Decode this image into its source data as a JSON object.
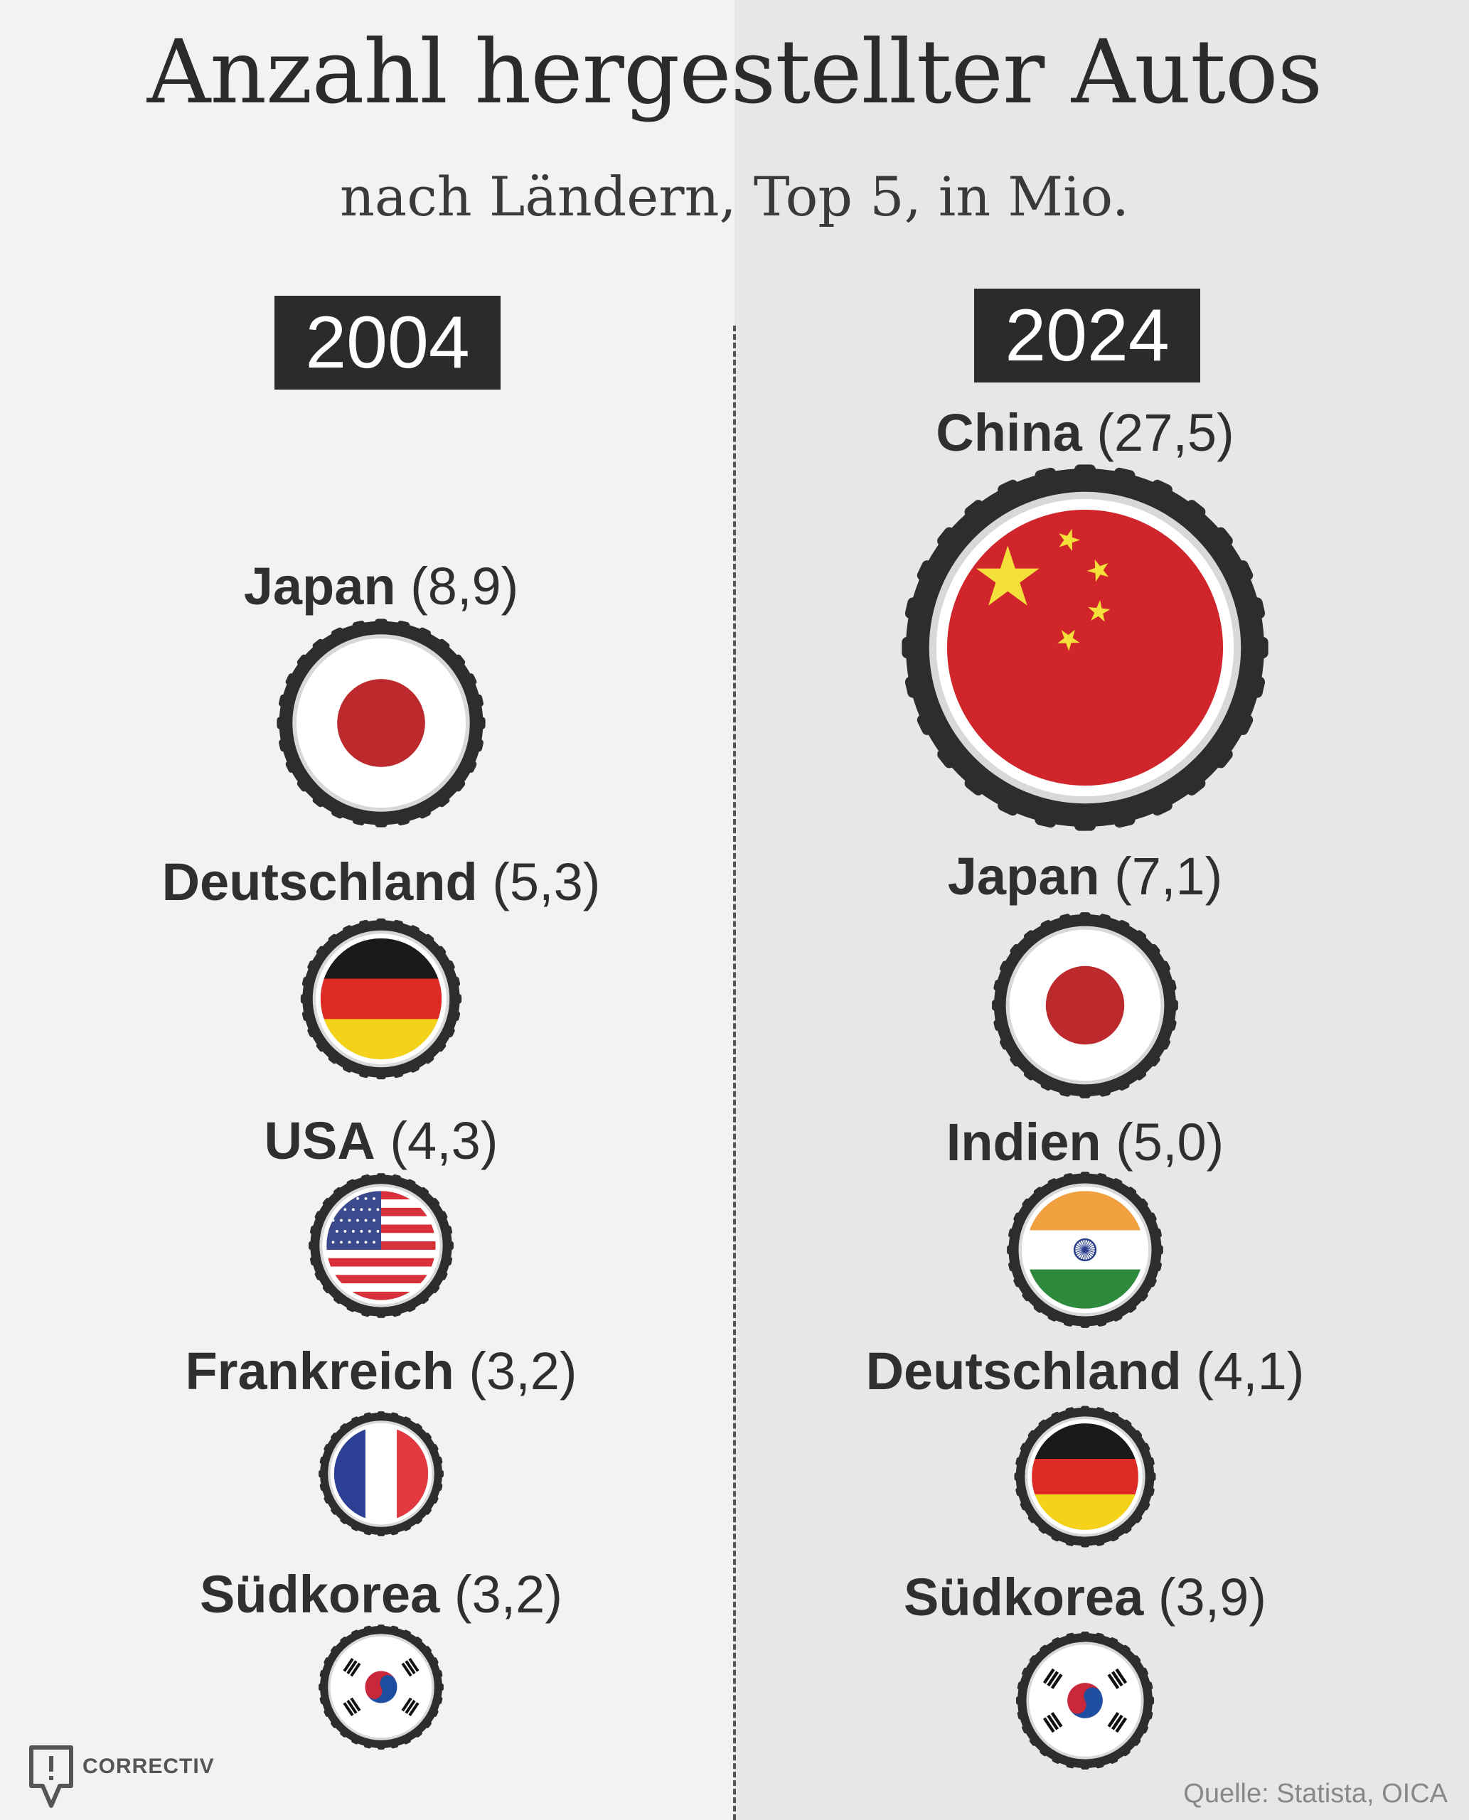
{
  "title": "Anzahl hergestellter Autos",
  "subtitle": "nach Ländern, Top 5, in Mio.",
  "source": "Quelle: Statista, OICA",
  "logo": "CORRECTIV",
  "chart_data": {
    "type": "bubble-ranking",
    "unit": "Mio.",
    "columns": [
      {
        "year": "2004",
        "items": [
          {
            "country": "Japan",
            "value_label": "(8,9)",
            "value": 8.9,
            "flag": "japan-flag"
          },
          {
            "country": "Deutschland",
            "value_label": "(5,3)",
            "value": 5.3,
            "flag": "germany-flag"
          },
          {
            "country": "USA",
            "value_label": "(4,3)",
            "value": 4.3,
            "flag": "usa-flag"
          },
          {
            "country": "Frankreich",
            "value_label": "(3,2)",
            "value": 3.2,
            "flag": "france-flag"
          },
          {
            "country": "Südkorea",
            "value_label": "(3,2)",
            "value": 3.2,
            "flag": "south-korea-flag"
          }
        ]
      },
      {
        "year": "2024",
        "items": [
          {
            "country": "China",
            "value_label": "(27,5)",
            "value": 27.5,
            "flag": "china-flag"
          },
          {
            "country": "Japan",
            "value_label": "(7,1)",
            "value": 7.1,
            "flag": "japan-flag"
          },
          {
            "country": "Indien",
            "value_label": "(5,0)",
            "value": 5.0,
            "flag": "india-flag"
          },
          {
            "country": "Deutschland",
            "value_label": "(4,1)",
            "value": 4.1,
            "flag": "germany-flag"
          },
          {
            "country": "Südkorea",
            "value_label": "(3,9)",
            "value": 3.9,
            "flag": "south-korea-flag"
          }
        ]
      }
    ]
  },
  "colors": {
    "tire": "#2d2d2d",
    "japan_red": "#bc2a2e",
    "china_red": "#d0262b",
    "china_star": "#f4e03a",
    "germany_black": "#1a1a1a",
    "germany_red": "#dd2a24",
    "germany_gold": "#f4d21a",
    "usa_red": "#d6303a",
    "usa_blue": "#3a4a8c",
    "france_blue": "#2c3f94",
    "france_red": "#e33a41",
    "india_saffron": "#f0a03e",
    "india_green": "#2d8a3c",
    "india_chakra": "#2c3f8c",
    "korea_red": "#c8283a",
    "korea_blue": "#1e4ea0"
  }
}
